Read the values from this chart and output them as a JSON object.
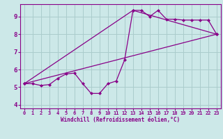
{
  "background_color": "#cce8e8",
  "grid_color": "#aacccc",
  "line_color": "#880088",
  "marker_color": "#880088",
  "xlabel": "Windchill (Refroidissement éolien,°C)",
  "xlim": [
    -0.5,
    23.5
  ],
  "ylim": [
    3.8,
    9.7
  ],
  "yticks": [
    4,
    5,
    6,
    7,
    8,
    9
  ],
  "xticks": [
    0,
    1,
    2,
    3,
    4,
    5,
    6,
    7,
    8,
    9,
    10,
    11,
    12,
    13,
    14,
    15,
    16,
    17,
    18,
    19,
    20,
    21,
    22,
    23
  ],
  "series1_x": [
    0,
    1,
    2,
    3,
    4,
    5,
    6,
    7,
    8,
    9,
    10,
    11,
    12,
    13,
    14,
    15,
    16,
    17,
    18,
    19,
    20,
    21,
    22,
    23
  ],
  "series1_y": [
    5.2,
    5.2,
    5.1,
    5.15,
    5.5,
    5.75,
    5.8,
    5.2,
    4.65,
    4.65,
    5.2,
    5.35,
    6.55,
    9.35,
    9.35,
    9.0,
    9.35,
    8.85,
    8.85,
    8.8,
    8.8,
    8.8,
    8.8,
    8.0
  ],
  "series2_x": [
    0,
    23
  ],
  "series2_y": [
    5.2,
    8.0
  ],
  "series3_x": [
    0,
    13,
    23
  ],
  "series3_y": [
    5.2,
    9.35,
    8.0
  ]
}
